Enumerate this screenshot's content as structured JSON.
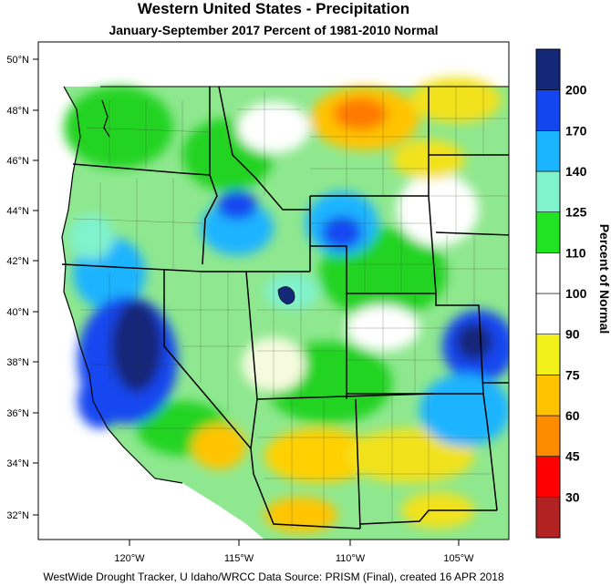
{
  "title": "Western United States - Precipitation",
  "subtitle": "January-September 2017  Percent of 1981-2010 Normal",
  "footer": "WestWide Drought Tracker, U Idaho/WRCC Data Source: PRISM (Final), created 16 APR 2018",
  "colorbar": {
    "title": "Percent of Normal",
    "bins": [
      {
        "color": "#b22222",
        "label": "30"
      },
      {
        "color": "#ff0000",
        "label": "45"
      },
      {
        "color": "#ff8c00",
        "label": "60"
      },
      {
        "color": "#ffc400",
        "label": "75"
      },
      {
        "color": "#f2f21a",
        "label": "90"
      },
      {
        "color": "#ffffff",
        "label": "100"
      },
      {
        "color": "#ffffff",
        "label": "110"
      },
      {
        "color": "#22e322",
        "label": "125"
      },
      {
        "color": "#80f2cc",
        "label": "140"
      },
      {
        "color": "#1ab4ff",
        "label": "170"
      },
      {
        "color": "#1446f0",
        "label": "200"
      },
      {
        "color": "#142878",
        "label": ""
      }
    ]
  },
  "axes": {
    "lat_ticks": [
      "50°N",
      "48°N",
      "46°N",
      "44°N",
      "42°N",
      "40°N",
      "38°N",
      "36°N",
      "34°N",
      "32°N"
    ],
    "lon_ticks": [
      "120°W",
      "115°W",
      "110°W",
      "105°W"
    ]
  }
}
